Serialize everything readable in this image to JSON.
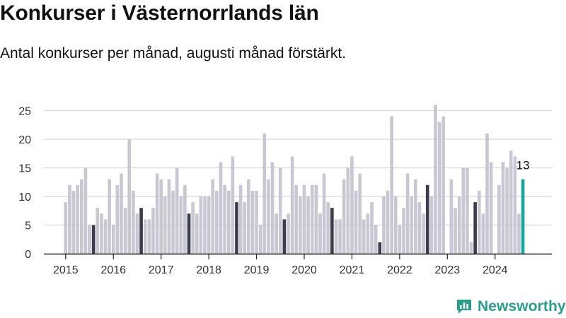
{
  "header": {
    "title": "Konkurser i Västernorrlands län",
    "subtitle": "Antal konkurser per månad, augusti månad förstärkt."
  },
  "brand": {
    "name": "Newsworthy",
    "logo_icon": "newsworthy-chart-icon",
    "color": "#2a9d8f"
  },
  "colors": {
    "bar": "#c8c7d2",
    "highlight_august": "#3d3c4c",
    "latest": "#13a89e",
    "grid": "#d6d6d6",
    "axis": "#222222"
  },
  "chart_data": {
    "type": "bar",
    "title": "Konkurser i Västernorrlands län",
    "subtitle": "Antal konkurser per månad, augusti månad förstärkt.",
    "xlabel": "",
    "ylabel": "",
    "ylim": [
      0,
      27
    ],
    "yticks": [
      0,
      5,
      10,
      15,
      20,
      25
    ],
    "xtick_labels": [
      "2015",
      "2016",
      "2017",
      "2018",
      "2019",
      "2020",
      "2021",
      "2022",
      "2023",
      "2024"
    ],
    "grid": true,
    "start": "2015-01",
    "highlight_month": 8,
    "last_value_label": "13",
    "values": [
      9,
      12,
      11,
      12,
      13,
      15,
      5,
      5,
      8,
      7,
      6,
      13,
      5,
      12,
      14,
      8,
      20,
      11,
      7,
      8,
      6,
      6,
      8,
      14,
      13,
      10,
      13,
      11,
      15,
      10,
      12,
      7,
      9,
      7,
      10,
      10,
      10,
      13,
      11,
      16,
      12,
      11,
      17,
      9,
      12,
      9,
      13,
      11,
      11,
      5,
      21,
      13,
      16,
      7,
      15,
      6,
      7,
      17,
      12,
      10,
      12,
      10,
      12,
      12,
      7,
      14,
      9,
      8,
      6,
      6,
      13,
      15,
      17,
      11,
      14,
      6,
      7,
      9,
      5,
      2,
      10,
      11,
      24,
      10,
      5,
      8,
      14,
      10,
      13,
      9,
      7,
      12,
      10,
      26,
      23,
      24,
      0,
      13,
      8,
      10,
      15,
      15,
      2,
      9,
      11,
      7,
      21,
      16,
      0,
      12,
      16,
      15,
      18,
      17,
      7,
      13
    ]
  }
}
